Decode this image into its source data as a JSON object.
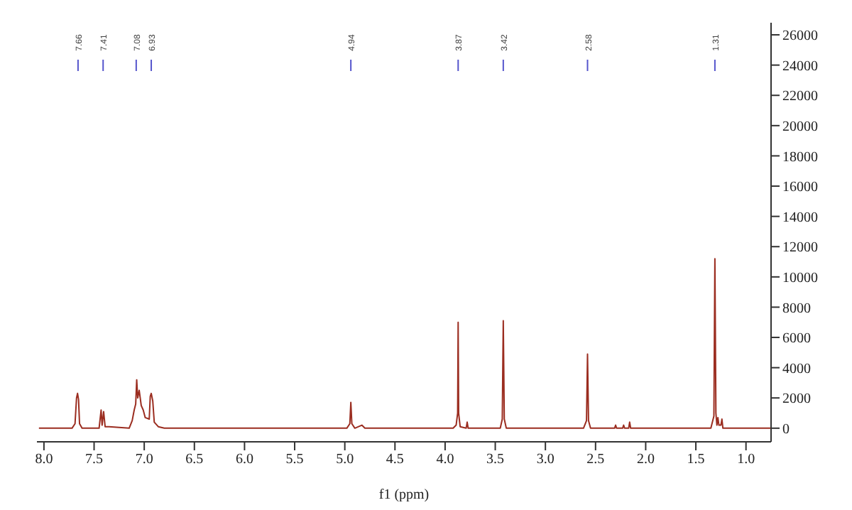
{
  "chart_data": {
    "type": "line",
    "xlabel": "f1 (ppm)",
    "xlim": [
      8.07,
      0.75
    ],
    "xticks": [
      {
        "value": 8,
        "label": "8.0"
      },
      7.5,
      {
        "value": 7,
        "label": "7.0"
      },
      6.5,
      {
        "value": 6,
        "label": "6.0"
      },
      5.5,
      {
        "value": 5,
        "label": "5.0"
      },
      4.5,
      {
        "value": 4,
        "label": "4.0"
      },
      3.5,
      {
        "value": 3,
        "label": "3.0"
      },
      2.5,
      {
        "value": 2,
        "label": "2.0"
      },
      1.5,
      {
        "value": 1,
        "label": "1.0"
      }
    ],
    "ylim": [
      -900,
      26800
    ],
    "yticks": [
      0,
      2000,
      4000,
      6000,
      8000,
      10000,
      12000,
      14000,
      16000,
      18000,
      20000,
      22000,
      24000,
      26000
    ],
    "annotations": [
      {
        "text": "7.66",
        "x": 7.66
      },
      {
        "text": "7.41",
        "x": 7.41
      },
      {
        "text": "7.08",
        "x": 7.08
      },
      {
        "text": "6.93",
        "x": 6.93
      },
      {
        "text": "4.94",
        "x": 4.94
      },
      {
        "text": "3.87",
        "x": 3.87
      },
      {
        "text": "3.42",
        "x": 3.42
      },
      {
        "text": "2.58",
        "x": 2.58
      },
      {
        "text": "1.31",
        "x": 1.31
      }
    ],
    "series": [
      {
        "color": "#9b2d20",
        "x": [
          8.05,
          7.72,
          7.69,
          7.675,
          7.665,
          7.655,
          7.645,
          7.62,
          7.45,
          7.43,
          7.42,
          7.405,
          7.39,
          7.35,
          7.15,
          7.12,
          7.1,
          7.085,
          7.075,
          7.065,
          7.05,
          7.03,
          7.01,
          6.99,
          6.95,
          6.94,
          6.93,
          6.915,
          6.9,
          6.86,
          6.8,
          4.98,
          4.95,
          4.94,
          4.93,
          4.9,
          4.83,
          4.8,
          3.92,
          3.89,
          3.875,
          3.87,
          3.865,
          3.85,
          3.79,
          3.78,
          3.77,
          3.45,
          3.43,
          3.42,
          3.41,
          3.39,
          2.62,
          2.59,
          2.58,
          2.57,
          2.55,
          2.31,
          2.3,
          2.29,
          2.23,
          2.22,
          2.21,
          2.17,
          2.16,
          2.15,
          1.35,
          1.32,
          1.31,
          1.3,
          1.29,
          1.28,
          1.27,
          1.25,
          1.24,
          1.23,
          0.75
        ],
        "values": [
          0,
          0,
          300,
          2000,
          2300,
          1900,
          300,
          0,
          0,
          1200,
          200,
          1100,
          100,
          100,
          0,
          500,
          1200,
          1600,
          3200,
          2000,
          2500,
          1500,
          1200,
          700,
          600,
          2100,
          2300,
          1800,
          400,
          100,
          0,
          0,
          300,
          1700,
          300,
          0,
          200,
          0,
          0,
          200,
          1000,
          7000,
          1000,
          100,
          0,
          400,
          0,
          0,
          600,
          7100,
          600,
          0,
          0,
          500,
          4900,
          500,
          0,
          0,
          200,
          0,
          0,
          200,
          0,
          0,
          400,
          0,
          0,
          800,
          11200,
          1000,
          200,
          700,
          200,
          200,
          600,
          0,
          0
        ]
      }
    ]
  }
}
